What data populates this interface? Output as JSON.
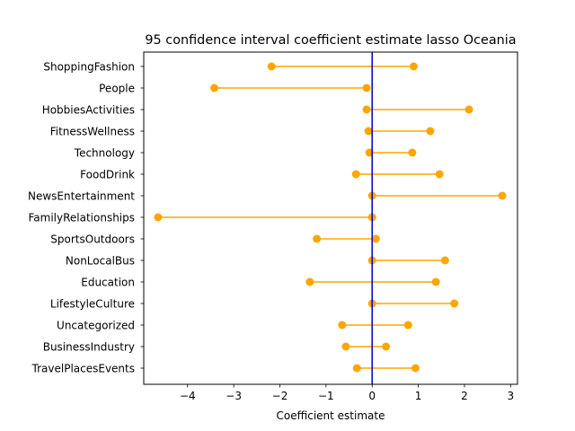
{
  "chart_data": {
    "type": "interval",
    "title": "95 confidence interval coefficient estimate lasso Oceania",
    "xlabel": "Coefficient estimate",
    "ylabel": "",
    "xlim": [
      -4.95,
      3.15
    ],
    "xticks": [
      -4,
      -3,
      -2,
      -1,
      0,
      1,
      2,
      3
    ],
    "xtick_labels": [
      "−4",
      "−3",
      "−2",
      "−1",
      "0",
      "1",
      "2",
      "3"
    ],
    "reference_line_x": 0,
    "grid": false,
    "categories": [
      "ShoppingFashion",
      "People",
      "HobbiesActivities",
      "FitnessWellness",
      "Technology",
      "FoodDrink",
      "NewsEntertainment",
      "FamilyRelationships",
      "SportsOutdoors",
      "NonLocalBus",
      "Education",
      "LifestyleCulture",
      "Uncategorized",
      "BusinessIndustry",
      "TravelPlacesEvents"
    ],
    "lower": [
      -2.18,
      -3.42,
      -0.12,
      -0.08,
      -0.06,
      -0.35,
      0.0,
      -4.64,
      -1.2,
      0.0,
      -1.35,
      0.0,
      -0.65,
      -0.57,
      -0.33
    ],
    "upper": [
      0.9,
      -0.12,
      2.1,
      1.26,
      0.87,
      1.46,
      2.82,
      0.0,
      0.08,
      1.58,
      1.38,
      1.78,
      0.78,
      0.3,
      0.94
    ],
    "colors": {
      "interval": "#FFA500",
      "reference": "#0000CC",
      "axes": "#000000"
    }
  }
}
